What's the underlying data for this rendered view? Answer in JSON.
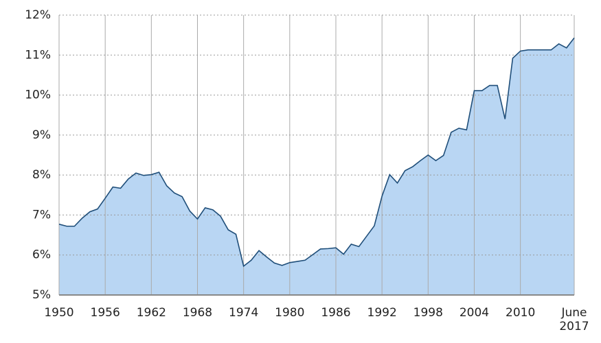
{
  "chart_data": {
    "type": "area",
    "x": [
      1950,
      1951,
      1952,
      1953,
      1954,
      1955,
      1956,
      1957,
      1958,
      1959,
      1960,
      1961,
      1962,
      1963,
      1964,
      1965,
      1966,
      1967,
      1968,
      1969,
      1970,
      1971,
      1972,
      1973,
      1974,
      1975,
      1976,
      1977,
      1978,
      1979,
      1980,
      1981,
      1982,
      1983,
      1984,
      1985,
      1986,
      1987,
      1988,
      1989,
      1990,
      1991,
      1992,
      1993,
      1994,
      1995,
      1996,
      1997,
      1998,
      1999,
      2000,
      2001,
      2002,
      2003,
      2004,
      2005,
      2006,
      2007,
      2008,
      2009,
      2010,
      2011,
      2012,
      2013,
      2014,
      2015,
      2016,
      2017
    ],
    "values": [
      6.77,
      6.72,
      6.72,
      6.92,
      7.08,
      7.15,
      7.42,
      7.7,
      7.67,
      7.9,
      8.05,
      7.99,
      8.01,
      8.07,
      7.73,
      7.55,
      7.46,
      7.1,
      6.9,
      7.18,
      7.13,
      6.97,
      6.63,
      6.52,
      5.72,
      5.87,
      6.11,
      5.95,
      5.8,
      5.74,
      5.81,
      5.84,
      5.87,
      6.01,
      6.15,
      6.16,
      6.18,
      6.02,
      6.27,
      6.21,
      6.47,
      6.73,
      7.47,
      8.01,
      7.8,
      8.11,
      8.21,
      8.36,
      8.5,
      8.36,
      8.49,
      9.07,
      9.17,
      9.13,
      10.11,
      10.11,
      10.24,
      10.24,
      9.4,
      10.92,
      11.1,
      11.13,
      11.13,
      11.13,
      11.13,
      11.28,
      11.18,
      11.43
    ],
    "color": "#b9d6f3",
    "line_color": "#1f4e79",
    "xlim": [
      1950,
      2017
    ],
    "xticks": [
      1950,
      1956,
      1962,
      1968,
      1974,
      1980,
      1986,
      1992,
      1998,
      2004,
      2010,
      {
        "value": 2017,
        "label": "June 2017"
      }
    ],
    "ylim": [
      5,
      12
    ],
    "yticks": [
      {
        "value": 5,
        "label": "5%"
      },
      {
        "value": 6,
        "label": "6%"
      },
      {
        "value": 7,
        "label": "7%"
      },
      {
        "value": 8,
        "label": "8%"
      },
      {
        "value": 9,
        "label": "9%"
      },
      {
        "value": 10,
        "label": "10%"
      },
      {
        "value": 11,
        "label": "11%"
      },
      {
        "value": 12,
        "label": "12%"
      }
    ],
    "grid": true
  }
}
